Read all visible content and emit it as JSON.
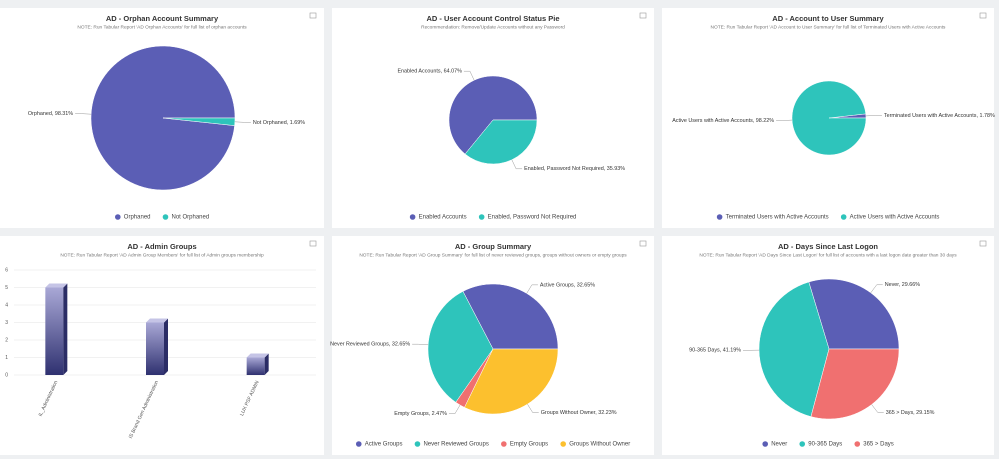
{
  "chart_data": [
    {
      "type": "pie",
      "title": "AD - Orphan Account Summary",
      "subtitle": "NOTE: Run Tabular Report 'AD Orphan Accounts' for full list of orphan accounts",
      "categories": [
        "Orphaned",
        "Not Orphaned"
      ],
      "values": [
        98.31,
        1.69
      ],
      "value_labels": [
        "Orphaned, 98.31%",
        "Not Orphaned, 1.69%"
      ],
      "colors": [
        "#5b5eb5",
        "#2ec4bb"
      ]
    },
    {
      "type": "pie",
      "title": "AD - User Account Control Status Pie",
      "subtitle": "Recommendation: Remove/Update Accounts without any Password",
      "categories": [
        "Enabled Accounts",
        "Enabled, Password Not Required"
      ],
      "values": [
        64.07,
        35.93
      ],
      "value_labels": [
        "Enabled Accounts, 64.07%",
        "Enabled, Password Not Required, 35.93%"
      ],
      "colors": [
        "#5b5eb5",
        "#2ec4bb"
      ]
    },
    {
      "type": "pie",
      "title": "AD - Account to User Summary",
      "subtitle": "NOTE: Run Tabular Report 'AD Account to User Summary' for full list of Terminated Users with Active Accounts",
      "categories": [
        "Terminated Users with Active Accounts",
        "Active Users with Active Accounts"
      ],
      "values": [
        1.78,
        98.22
      ],
      "value_labels": [
        "Terminated Users with Active Accounts, 1.78%",
        "Active Users with Active Accounts, 98.22%"
      ],
      "colors": [
        "#5b5eb5",
        "#2ec4bb"
      ]
    },
    {
      "type": "bar",
      "title": "AD - Admin Groups",
      "subtitle": "NOTE: Run Tabular Report 'AD Admin Group Members' for full list of Admin groups membership",
      "categories": [
        "IL_Administration",
        "IS Brand Gen Administration",
        "LUX PSF ADMIN"
      ],
      "values": [
        5,
        3,
        1
      ],
      "ylim": [
        0,
        6
      ],
      "yticks": [
        0,
        1,
        2,
        3,
        4,
        5,
        6
      ],
      "color": "#3d3f80"
    },
    {
      "type": "pie",
      "title": "AD - Group Summary",
      "subtitle": "NOTE: Run Tabular Report 'AD Group Summary' for full list of never reviewed groups, groups without owners or empty groups",
      "categories": [
        "Active Groups",
        "Never Reviewed Groups",
        "Empty Groups",
        "Groups Without Owner"
      ],
      "values": [
        32.65,
        32.65,
        2.47,
        32.23
      ],
      "value_labels": [
        "Active Groups, 32.65%",
        "Never Reviewed Groups, 32.65%",
        "Empty Groups, 2.47%",
        "Groups Without Owner, 32.23%"
      ],
      "colors": [
        "#5b5eb5",
        "#2ec4bb",
        "#f07070",
        "#fcc02e"
      ]
    },
    {
      "type": "pie",
      "title": "AD - Days Since Last Logon",
      "subtitle": "NOTE: Run Tabular Report 'AD Days Since Last Logon' for full list of accounts with a last logon date greater than 30 days",
      "categories": [
        "Never",
        "90-365 Days",
        "365 > Days"
      ],
      "values": [
        29.66,
        41.19,
        29.15
      ],
      "value_labels": [
        "Never, 29.66%",
        "90-365 Days, 41.19%",
        "365 > Days, 29.15%"
      ],
      "colors": [
        "#5b5eb5",
        "#2ec4bb",
        "#f07070"
      ]
    }
  ]
}
